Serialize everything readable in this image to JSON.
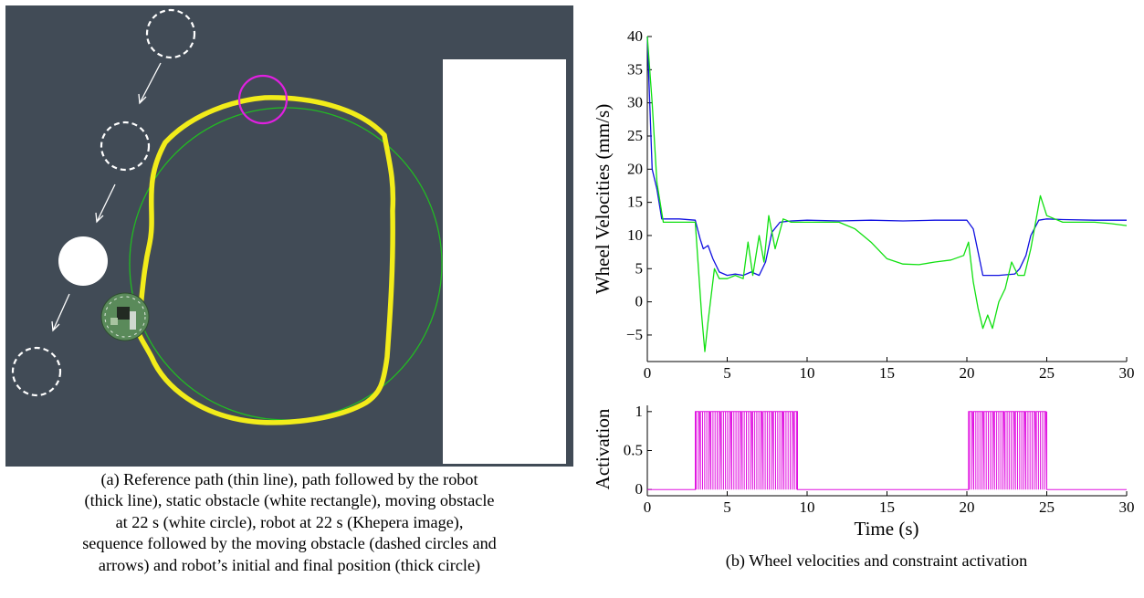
{
  "figure_a": {
    "caption_lines": [
      "(a) Reference path (thin line), path followed by the robot",
      "(thick line), static obstacle (white rectangle), moving obstacle",
      "at 22 s (white circle), robot at 22 s (Khepera image),",
      "sequence followed by the moving obstacle (dashed circles and",
      "arrows) and robot’s initial and final position (thick circle)"
    ],
    "colors": {
      "background": "#414b56",
      "reference_path": "#22bb22",
      "robot_path": "#f2ec1a",
      "position_circle": "#e020e0",
      "obstacles": "#ffffff",
      "robot": "#5a8a5a"
    }
  },
  "figure_b": {
    "caption": "(b) Wheel velocities and constraint activation"
  },
  "chart_data": [
    {
      "type": "line",
      "title": "",
      "xlabel": "",
      "ylabel": "Wheel Velocities (mm/s)",
      "xlim": [
        0,
        30
      ],
      "ylim": [
        -9,
        40
      ],
      "xticks": [
        0,
        5,
        10,
        15,
        20,
        25,
        30
      ],
      "yticks": [
        -5,
        0,
        5,
        10,
        15,
        20,
        25,
        30,
        35,
        40
      ],
      "grid": false,
      "series": [
        {
          "color": "#1010e0",
          "x": [
            0,
            0.3,
            0.6,
            0.9,
            1.5,
            2,
            3,
            3.3,
            3.5,
            3.8,
            4.1,
            4.5,
            5,
            5.5,
            6,
            6.5,
            7,
            7.4,
            7.8,
            8.3,
            9,
            10,
            12,
            14,
            16,
            18,
            20,
            20.4,
            20.7,
            21,
            21.5,
            22,
            23,
            23.3,
            23.7,
            24,
            24.5,
            25,
            26,
            28,
            30
          ],
          "y": [
            40,
            20,
            17,
            12.5,
            12.5,
            12.5,
            12.3,
            9.5,
            8,
            8.5,
            6.5,
            4.5,
            4,
            4.2,
            4,
            4.5,
            4,
            6,
            10.5,
            12,
            12.2,
            12.3,
            12.2,
            12.3,
            12.2,
            12.3,
            12.3,
            11,
            7.5,
            4,
            4,
            4,
            4.2,
            5,
            7,
            10,
            12.3,
            12.5,
            12.4,
            12.3,
            12.3
          ]
        },
        {
          "color": "#10e010",
          "x": [
            0,
            0.3,
            0.6,
            1,
            1.5,
            2,
            3,
            3.2,
            3.4,
            3.6,
            3.8,
            4,
            4.2,
            4.5,
            5,
            5.5,
            6,
            6.3,
            6.6,
            7,
            7.3,
            7.6,
            8,
            8.5,
            9,
            10,
            11,
            12,
            13,
            14,
            15,
            16,
            17,
            18,
            19,
            19.8,
            20.1,
            20.4,
            20.7,
            21,
            21.3,
            21.6,
            22,
            22.4,
            22.8,
            23.2,
            23.6,
            24,
            24.3,
            24.6,
            25,
            25.5,
            26,
            27,
            28,
            29,
            30
          ],
          "y": [
            40,
            30,
            18,
            12,
            12,
            12,
            12,
            5,
            -2,
            -7.5,
            -3,
            1,
            5,
            3.5,
            3.5,
            4,
            3.5,
            9,
            4,
            10,
            6,
            13,
            8,
            12.5,
            12,
            12,
            12,
            12,
            11,
            9,
            6.5,
            5.7,
            5.6,
            6,
            6.3,
            7,
            9,
            3,
            -1,
            -4,
            -2,
            -4,
            0,
            2,
            6,
            4,
            4,
            8,
            12,
            16,
            13,
            12.5,
            12,
            12,
            12,
            11.8,
            11.5
          ]
        }
      ]
    },
    {
      "type": "line",
      "title": "",
      "xlabel": "Time (s)",
      "ylabel": "Activation",
      "xlim": [
        0,
        30
      ],
      "ylim": [
        -0.08,
        1.08
      ],
      "xticks": [
        0,
        5,
        10,
        15,
        20,
        25,
        30
      ],
      "yticks": [
        0,
        0.5,
        1
      ],
      "ytick_labels": [
        "0",
        "0.5",
        "1"
      ],
      "grid": false,
      "series": [
        {
          "color": "#e010e0",
          "active_intervals": [
            [
              3.0,
              9.4
            ],
            [
              20.1,
              25.0
            ]
          ],
          "values": [
            0,
            1
          ]
        }
      ]
    }
  ]
}
